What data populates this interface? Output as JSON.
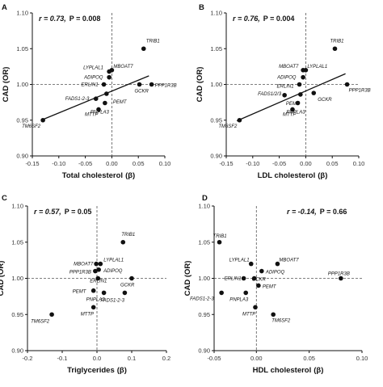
{
  "chart_data": [
    {
      "type": "scatter",
      "panel": "A",
      "stats": {
        "r_text": "r = 0.73,",
        "p_text": "P = 0.008"
      },
      "xlabel": "Total cholesterol",
      "xlabel_unit": "(β)",
      "ylabel": "CAD (OR)",
      "xlim": [
        -0.15,
        0.1
      ],
      "ylim": [
        0.9,
        1.1
      ],
      "xticks": [
        "-0.15",
        "-0.10",
        "-0.05",
        "0.00",
        "0.05",
        "0.10"
      ],
      "yticks": [
        "0.90",
        "0.95",
        "1.00",
        "1.05",
        "1.10"
      ],
      "regression": [
        [
          -0.13,
          0.951
        ],
        [
          0.07,
          1.012
        ]
      ],
      "points": [
        {
          "label": "TRIB1",
          "x": 0.06,
          "y": 1.05
        },
        {
          "label": "MBOAT7",
          "x": 0.0,
          "y": 1.02
        },
        {
          "label": "LYPLAL1",
          "x": -0.005,
          "y": 1.018
        },
        {
          "label": "ADIPOQ",
          "x": -0.005,
          "y": 1.01
        },
        {
          "label": "ERLIN1",
          "x": -0.015,
          "y": 1.0
        },
        {
          "label": "GCKR",
          "x": 0.052,
          "y": 1.0
        },
        {
          "label": "PPP1R3B",
          "x": 0.075,
          "y": 1.0
        },
        {
          "label": "FADS1-2-3",
          "x": -0.03,
          "y": 0.98
        },
        {
          "label": "PEMT",
          "x": -0.01,
          "y": 0.987
        },
        {
          "label": "PNPLA3",
          "x": -0.013,
          "y": 0.974
        },
        {
          "label": "MTTP",
          "x": -0.025,
          "y": 0.965
        },
        {
          "label": "TM6SF2",
          "x": -0.13,
          "y": 0.95
        }
      ]
    },
    {
      "type": "scatter",
      "panel": "B",
      "stats": {
        "r_text": "r = 0.76,",
        "p_text": "P = 0.004"
      },
      "xlabel": "LDL cholesterol",
      "xlabel_unit": "(β)",
      "ylabel": "CAD (OR)",
      "xlim": [
        -0.15,
        0.1
      ],
      "ylim": [
        0.9,
        1.1
      ],
      "xticks": [
        "-0.15",
        "-0.10",
        "-0.05",
        "0.00",
        "0.05",
        "0.10"
      ],
      "yticks": [
        "0.90",
        "0.95",
        "1.00",
        "1.05",
        "1.10"
      ],
      "regression": [
        [
          -0.13,
          0.949
        ],
        [
          0.075,
          1.015
        ]
      ],
      "points": [
        {
          "label": "TRIB1",
          "x": 0.055,
          "y": 1.05
        },
        {
          "label": "MBOAT7",
          "x": -0.005,
          "y": 1.02
        },
        {
          "label": "LYPLAL1",
          "x": 0.0,
          "y": 1.02
        },
        {
          "label": "ADIPOQ",
          "x": -0.005,
          "y": 1.01
        },
        {
          "label": "ERLIN1",
          "x": -0.012,
          "y": 1.0
        },
        {
          "label": "GCKR",
          "x": 0.015,
          "y": 0.988
        },
        {
          "label": "PPP1R3B",
          "x": 0.078,
          "y": 1.0
        },
        {
          "label": "FADS1/2/3",
          "x": -0.04,
          "y": 0.985
        },
        {
          "label": "PEMT",
          "x": -0.01,
          "y": 0.986
        },
        {
          "label": "PNPLA3",
          "x": -0.015,
          "y": 0.974
        },
        {
          "label": "MTTP",
          "x": -0.025,
          "y": 0.965
        },
        {
          "label": "TM6SF2",
          "x": -0.125,
          "y": 0.95
        }
      ]
    },
    {
      "type": "scatter",
      "panel": "C",
      "stats": {
        "r_text": "r = 0.57,",
        "p_text": "P = 0.05"
      },
      "xlabel": "Triglycerides",
      "xlabel_unit": "(β)",
      "ylabel": "CAD (OR)",
      "xlim": [
        -0.2,
        0.2
      ],
      "ylim": [
        0.9,
        1.1
      ],
      "xticks": [
        "-0.2",
        "-0.1",
        "0.0",
        "0.1",
        "0.2"
      ],
      "yticks": [
        "0.90",
        "0.95",
        "1.00",
        "1.05",
        "1.10"
      ],
      "regression": [],
      "points": [
        {
          "label": "TRIB1",
          "x": 0.075,
          "y": 1.05
        },
        {
          "label": "MBOAT7",
          "x": -0.002,
          "y": 1.02
        },
        {
          "label": "LYPLAL1",
          "x": 0.01,
          "y": 1.02
        },
        {
          "label": "PPP1R3B",
          "x": -0.005,
          "y": 1.01
        },
        {
          "label": "ADIPOQ",
          "x": 0.005,
          "y": 1.012
        },
        {
          "label": "ERLIN1",
          "x": 0.003,
          "y": 1.0
        },
        {
          "label": "GCKR",
          "x": 0.1,
          "y": 1.0
        },
        {
          "label": "PEMT",
          "x": -0.01,
          "y": 0.983
        },
        {
          "label": "FADS1-2-3",
          "x": 0.08,
          "y": 0.98
        },
        {
          "label": "PNPLA3",
          "x": 0.02,
          "y": 0.98
        },
        {
          "label": "MTTP",
          "x": -0.01,
          "y": 0.96
        },
        {
          "label": "TM6SF2",
          "x": -0.13,
          "y": 0.95
        }
      ]
    },
    {
      "type": "scatter",
      "panel": "D",
      "stats": {
        "r_text": "r = -0.14,",
        "p_text": "P = 0.66"
      },
      "xlabel": "HDL cholesterol",
      "xlabel_unit": "(β)",
      "ylabel": "CAD (OR)",
      "xlim": [
        -0.04,
        0.1
      ],
      "ylim": [
        0.9,
        1.1
      ],
      "xticks": [
        "-0.05",
        "0.00",
        "0.05",
        "0.10"
      ],
      "yticks": [
        "0.90",
        "0.95",
        "1.00",
        "1.05",
        "1.10"
      ],
      "regression": [],
      "points": [
        {
          "label": "TRIB1",
          "x": -0.035,
          "y": 1.05
        },
        {
          "label": "LYPLAL1",
          "x": -0.005,
          "y": 1.02
        },
        {
          "label": "MBOAT7",
          "x": 0.02,
          "y": 1.02
        },
        {
          "label": "ADIPOQ",
          "x": 0.005,
          "y": 1.01
        },
        {
          "label": "ERLIN1",
          "x": -0.012,
          "y": 1.0
        },
        {
          "label": "GCKR",
          "x": -0.002,
          "y": 1.0
        },
        {
          "label": "PPP1R3B",
          "x": 0.08,
          "y": 1.0
        },
        {
          "label": "PEMT",
          "x": 0.002,
          "y": 0.99
        },
        {
          "label": "FADS1-2-3",
          "x": -0.033,
          "y": 0.98
        },
        {
          "label": "PNPLA3",
          "x": -0.01,
          "y": 0.98
        },
        {
          "label": "MTTP",
          "x": -0.001,
          "y": 0.96
        },
        {
          "label": "TM6SF2",
          "x": 0.016,
          "y": 0.95
        }
      ]
    }
  ]
}
